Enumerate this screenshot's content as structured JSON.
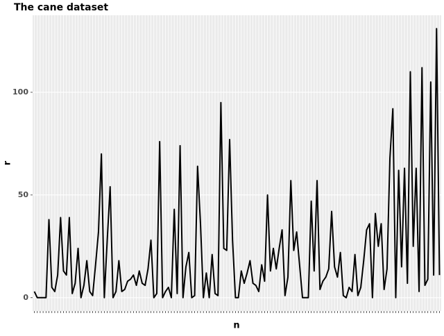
{
  "chart_data": {
    "type": "line",
    "title": "The cane dataset",
    "x_label": "n",
    "y_label": "r",
    "categories": [
      null,
      null,
      null,
      null,
      null,
      null,
      null,
      null,
      null,
      null,
      null,
      null,
      null,
      null,
      null,
      null,
      null,
      null,
      null,
      null,
      null,
      null,
      null,
      null,
      null,
      null,
      null,
      null,
      null,
      null,
      null,
      null,
      null,
      null,
      null,
      null,
      null,
      null,
      null,
      null,
      null,
      null,
      null,
      null,
      null,
      null,
      null,
      null,
      null,
      null,
      null,
      null,
      null,
      null,
      null,
      null,
      null,
      null,
      null,
      null,
      null,
      null,
      null,
      null,
      null,
      null,
      null,
      null,
      null,
      null,
      null,
      null,
      null,
      null,
      null,
      null,
      null,
      null,
      null,
      null,
      null,
      null,
      null,
      null,
      null,
      null,
      null,
      null,
      null,
      null,
      null,
      null,
      null,
      null,
      null,
      null,
      null,
      null,
      null,
      null,
      null,
      null,
      null,
      null,
      null,
      null,
      null,
      null,
      null,
      null,
      null,
      null,
      null,
      null,
      null,
      null,
      null,
      null,
      null,
      null,
      null,
      null,
      null,
      null,
      null,
      null,
      null,
      null,
      null,
      null,
      null,
      null,
      null,
      null,
      null,
      null,
      null,
      null,
      null,
      null
    ],
    "values": [
      3,
      0,
      0,
      0,
      0,
      38,
      5,
      3,
      11,
      39,
      13,
      11,
      39,
      2,
      7,
      24,
      0,
      6,
      18,
      3,
      1,
      16,
      32,
      70,
      0,
      28,
      54,
      0,
      3,
      18,
      3,
      4,
      8,
      9,
      11,
      6,
      13,
      7,
      6,
      14,
      28,
      0,
      2,
      76,
      0,
      3,
      5,
      0,
      43,
      2,
      74,
      0,
      15,
      22,
      0,
      1,
      64,
      36,
      0,
      12,
      0,
      21,
      2,
      1,
      95,
      24,
      23,
      77,
      28,
      0,
      0,
      13,
      7,
      12,
      18,
      7,
      6,
      3,
      16,
      8,
      50,
      13,
      24,
      14,
      24,
      33,
      1,
      10,
      57,
      23,
      32,
      16,
      0,
      0,
      0,
      47,
      13,
      57,
      4,
      8,
      10,
      14,
      42,
      15,
      10,
      22,
      1,
      0,
      5,
      3,
      21,
      1,
      5,
      18,
      33,
      36,
      0,
      41,
      25,
      36,
      4,
      14,
      68,
      92,
      0,
      62,
      15,
      63,
      7,
      110,
      25,
      63,
      3,
      112,
      6,
      9,
      105,
      11,
      131,
      11
    ],
    "color": "#000000",
    "ylim": [
      -6.5,
      137.5
    ],
    "yticks": [
      0,
      50,
      100
    ],
    "grid": true
  }
}
